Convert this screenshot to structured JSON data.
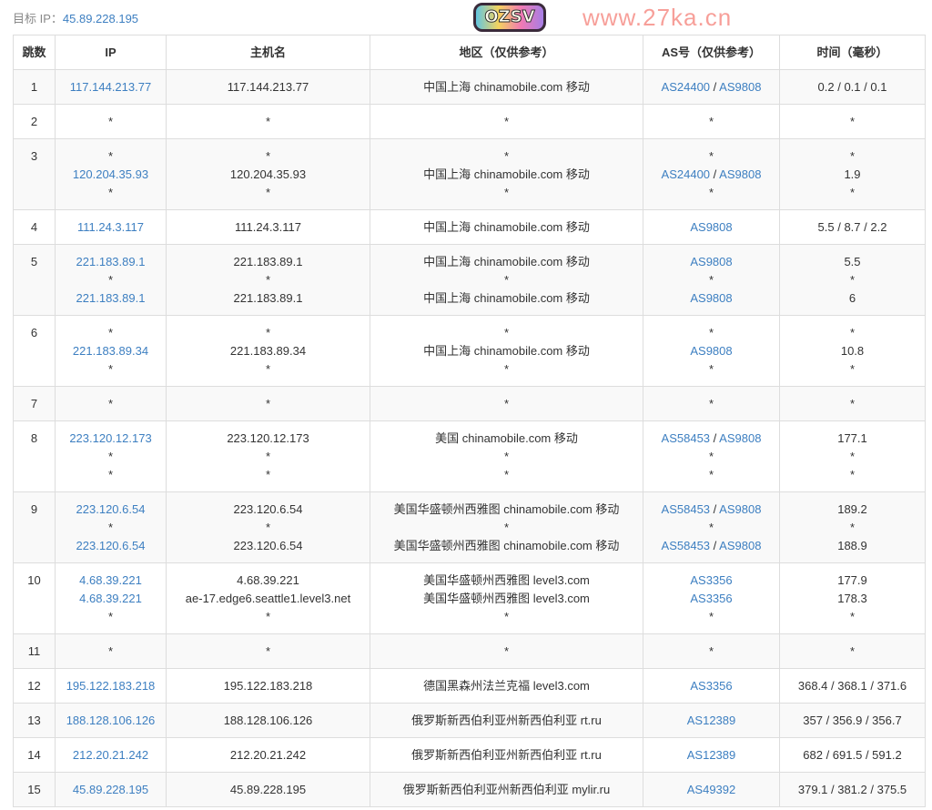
{
  "target": {
    "label": "目标 IP：",
    "ip": "45.89.228.195"
  },
  "headers": [
    "跳数",
    "IP",
    "主机名",
    "地区（仅供参考）",
    "AS号（仅供参考）",
    "时间（毫秒）"
  ],
  "rows": [
    {
      "hop": "1",
      "ip": [
        "117.144.213.77"
      ],
      "host": [
        "117.144.213.77"
      ],
      "region": [
        "中国上海 chinamobile.com 移动"
      ],
      "as": [
        [
          "AS24400",
          "AS9808"
        ]
      ],
      "time": [
        "0.2 / 0.1 / 0.1"
      ]
    },
    {
      "hop": "2",
      "ip": [
        "*"
      ],
      "host": [
        "*"
      ],
      "region": [
        "*"
      ],
      "as": [
        [
          "*"
        ]
      ],
      "time": [
        "*"
      ]
    },
    {
      "hop": "3",
      "ip": [
        "*",
        "120.204.35.93",
        "*"
      ],
      "host": [
        "*",
        "120.204.35.93",
        "*"
      ],
      "region": [
        "*",
        "中国上海 chinamobile.com 移动",
        "*"
      ],
      "as": [
        [
          "*"
        ],
        [
          "AS24400",
          "AS9808"
        ],
        [
          "*"
        ]
      ],
      "time": [
        "*",
        "1.9",
        "*"
      ]
    },
    {
      "hop": "4",
      "ip": [
        "111.24.3.117"
      ],
      "host": [
        "111.24.3.117"
      ],
      "region": [
        "中国上海 chinamobile.com 移动"
      ],
      "as": [
        [
          "AS9808"
        ]
      ],
      "time": [
        "5.5 / 8.7 / 2.2"
      ]
    },
    {
      "hop": "5",
      "ip": [
        "221.183.89.1",
        "*",
        "221.183.89.1"
      ],
      "host": [
        "221.183.89.1",
        "*",
        "221.183.89.1"
      ],
      "region": [
        "中国上海 chinamobile.com 移动",
        "*",
        "中国上海 chinamobile.com 移动"
      ],
      "as": [
        [
          "AS9808"
        ],
        [
          "*"
        ],
        [
          "AS9808"
        ]
      ],
      "time": [
        "5.5",
        "*",
        "6"
      ]
    },
    {
      "hop": "6",
      "ip": [
        "*",
        "221.183.89.34",
        "*"
      ],
      "host": [
        "*",
        "221.183.89.34",
        "*"
      ],
      "region": [
        "*",
        "中国上海 chinamobile.com 移动",
        "*"
      ],
      "as": [
        [
          "*"
        ],
        [
          "AS9808"
        ],
        [
          "*"
        ]
      ],
      "time": [
        "*",
        "10.8",
        "*"
      ]
    },
    {
      "hop": "7",
      "ip": [
        "*"
      ],
      "host": [
        "*"
      ],
      "region": [
        "*"
      ],
      "as": [
        [
          "*"
        ]
      ],
      "time": [
        "*"
      ]
    },
    {
      "hop": "8",
      "ip": [
        "223.120.12.173",
        "*",
        "*"
      ],
      "host": [
        "223.120.12.173",
        "*",
        "*"
      ],
      "region": [
        "美国 chinamobile.com 移动",
        "*",
        "*"
      ],
      "as": [
        [
          "AS58453",
          "AS9808"
        ],
        [
          "*"
        ],
        [
          "*"
        ]
      ],
      "time": [
        "177.1",
        "*",
        "*"
      ]
    },
    {
      "hop": "9",
      "ip": [
        "223.120.6.54",
        "*",
        "223.120.6.54"
      ],
      "host": [
        "223.120.6.54",
        "*",
        "223.120.6.54"
      ],
      "region": [
        "美国华盛顿州西雅图 chinamobile.com 移动",
        "*",
        "美国华盛顿州西雅图 chinamobile.com 移动"
      ],
      "as": [
        [
          "AS58453",
          "AS9808"
        ],
        [
          "*"
        ],
        [
          "AS58453",
          "AS9808"
        ]
      ],
      "time": [
        "189.2",
        "*",
        "188.9"
      ]
    },
    {
      "hop": "10",
      "ip": [
        "4.68.39.221",
        "4.68.39.221",
        "*"
      ],
      "host": [
        "4.68.39.221",
        "ae-17.edge6.seattle1.level3.net",
        "*"
      ],
      "region": [
        "美国华盛顿州西雅图 level3.com",
        "美国华盛顿州西雅图 level3.com",
        "*"
      ],
      "as": [
        [
          "AS3356"
        ],
        [
          "AS3356"
        ],
        [
          "*"
        ]
      ],
      "time": [
        "177.9",
        "178.3",
        "*"
      ]
    },
    {
      "hop": "11",
      "ip": [
        "*"
      ],
      "host": [
        "*"
      ],
      "region": [
        "*"
      ],
      "as": [
        [
          "*"
        ]
      ],
      "time": [
        "*"
      ]
    },
    {
      "hop": "12",
      "ip": [
        "195.122.183.218"
      ],
      "host": [
        "195.122.183.218"
      ],
      "region": [
        "德国黑森州法兰克福 level3.com"
      ],
      "as": [
        [
          "AS3356"
        ]
      ],
      "time": [
        "368.4 / 368.1 / 371.6"
      ]
    },
    {
      "hop": "13",
      "ip": [
        "188.128.106.126"
      ],
      "host": [
        "188.128.106.126"
      ],
      "region": [
        "俄罗斯新西伯利亚州新西伯利亚 rt.ru"
      ],
      "as": [
        [
          "AS12389"
        ]
      ],
      "time": [
        "357 / 356.9 / 356.7"
      ]
    },
    {
      "hop": "14",
      "ip": [
        "212.20.21.242"
      ],
      "host": [
        "212.20.21.242"
      ],
      "region": [
        "俄罗斯新西伯利亚州新西伯利亚 rt.ru"
      ],
      "as": [
        [
          "AS12389"
        ]
      ],
      "time": [
        "682 / 691.5 / 591.2"
      ]
    },
    {
      "hop": "15",
      "ip": [
        "45.89.228.195"
      ],
      "host": [
        "45.89.228.195"
      ],
      "region": [
        "俄罗斯新西伯利亚州新西伯利亚 mylir.ru"
      ],
      "as": [
        [
          "AS49392"
        ]
      ],
      "time": [
        "379.1 / 381.2 / 375.5"
      ]
    }
  ],
  "watermark": "www.27ka.cn",
  "logo_text": "OZSV",
  "colors": {
    "link": "#3d7fc1",
    "watermark": "#f05046",
    "stripe": "#f9f9f9"
  }
}
